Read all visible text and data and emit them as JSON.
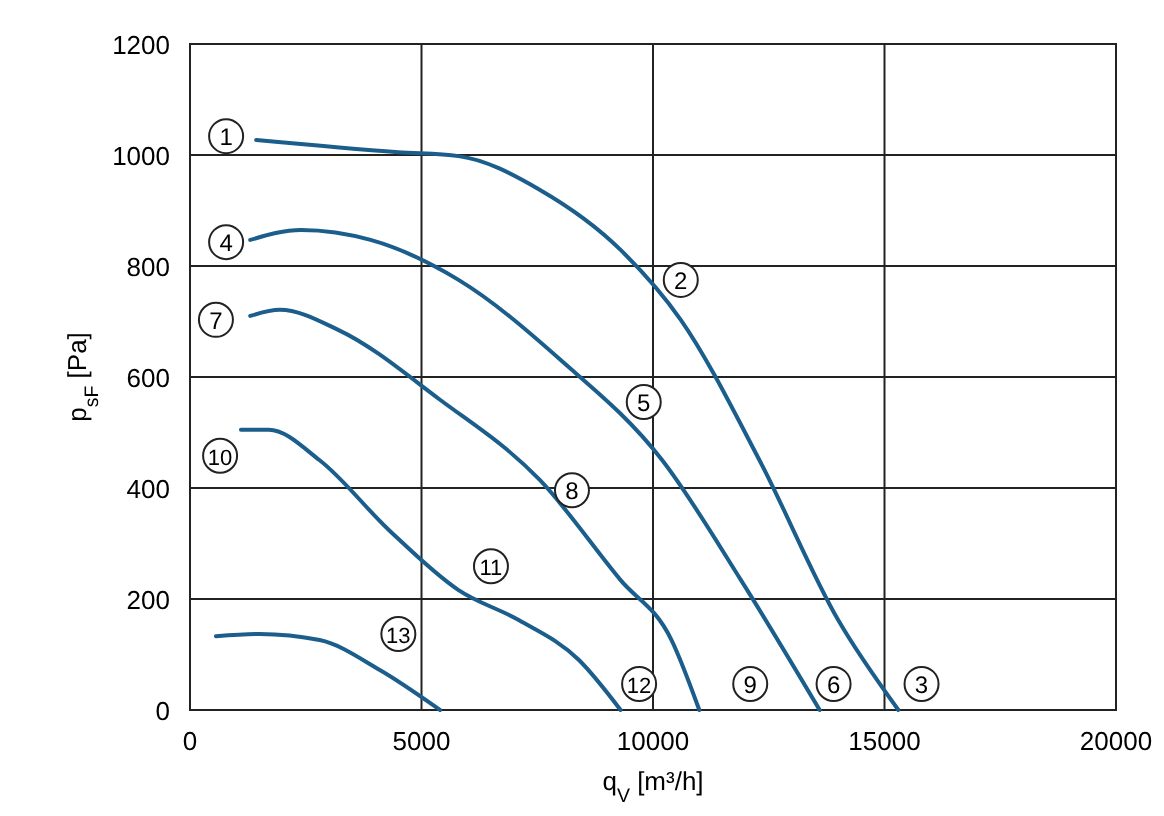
{
  "chart_data": {
    "type": "line",
    "xlabel": "q$_{V}$ [m³/h]",
    "ylabel": "p$_{sF}$ [Pa]",
    "xlim": [
      0,
      20000
    ],
    "xticks": [
      0,
      5000,
      10000,
      15000,
      20000
    ],
    "ylim": [
      0,
      1200
    ],
    "yticks": [
      0,
      200,
      400,
      600,
      800,
      1000,
      1200
    ],
    "grid": true,
    "line_style": "solid",
    "marker": "none",
    "series": [
      {
        "color": "#1b5e8c",
        "x": [
          1430,
          4500,
          5800,
          7560,
          9300,
          10600,
          12300,
          14000,
          15300
        ],
        "values": [
          1027,
          1005,
          998,
          937,
          829,
          703,
          450,
          162,
          0
        ]
      },
      {
        "color": "#1b5e8c",
        "x": [
          1300,
          2400,
          3900,
          5800,
          8000,
          10200,
          11900,
          13600
        ],
        "values": [
          847,
          865,
          847,
          775,
          631,
          450,
          234,
          0
        ]
      },
      {
        "color": "#1b5e8c",
        "x": [
          1300,
          1940,
          3200,
          5400,
          7560,
          9300,
          10400,
          11000
        ],
        "values": [
          710,
          721,
          685,
          559,
          414,
          234,
          126,
          0
        ]
      },
      {
        "color": "#1b5e8c",
        "x": [
          1100,
          1700,
          2800,
          4300,
          5800,
          7100,
          8400,
          9300
        ],
        "values": [
          505,
          505,
          450,
          324,
          216,
          162,
          90,
          0
        ]
      },
      {
        "color": "#1b5e8c",
        "x": [
          560,
          1500,
          2800,
          4100,
          5400
        ],
        "values": [
          133,
          137,
          126,
          72,
          0
        ]
      }
    ],
    "annotations": [
      {
        "text": "1",
        "x": 780,
        "y": 1034
      },
      {
        "text": "2",
        "x": 10600,
        "y": 775
      },
      {
        "text": "3",
        "x": 15800,
        "y": 47
      },
      {
        "text": "4",
        "x": 780,
        "y": 843
      },
      {
        "text": "5",
        "x": 9800,
        "y": 555
      },
      {
        "text": "6",
        "x": 13900,
        "y": 47
      },
      {
        "text": "7",
        "x": 560,
        "y": 703
      },
      {
        "text": "8",
        "x": 8250,
        "y": 396
      },
      {
        "text": "9",
        "x": 12100,
        "y": 47
      },
      {
        "text": "10",
        "x": 650,
        "y": 458
      },
      {
        "text": "11",
        "x": 6500,
        "y": 259
      },
      {
        "text": "12",
        "x": 9700,
        "y": 47
      },
      {
        "text": "13",
        "x": 4500,
        "y": 137
      }
    ]
  }
}
